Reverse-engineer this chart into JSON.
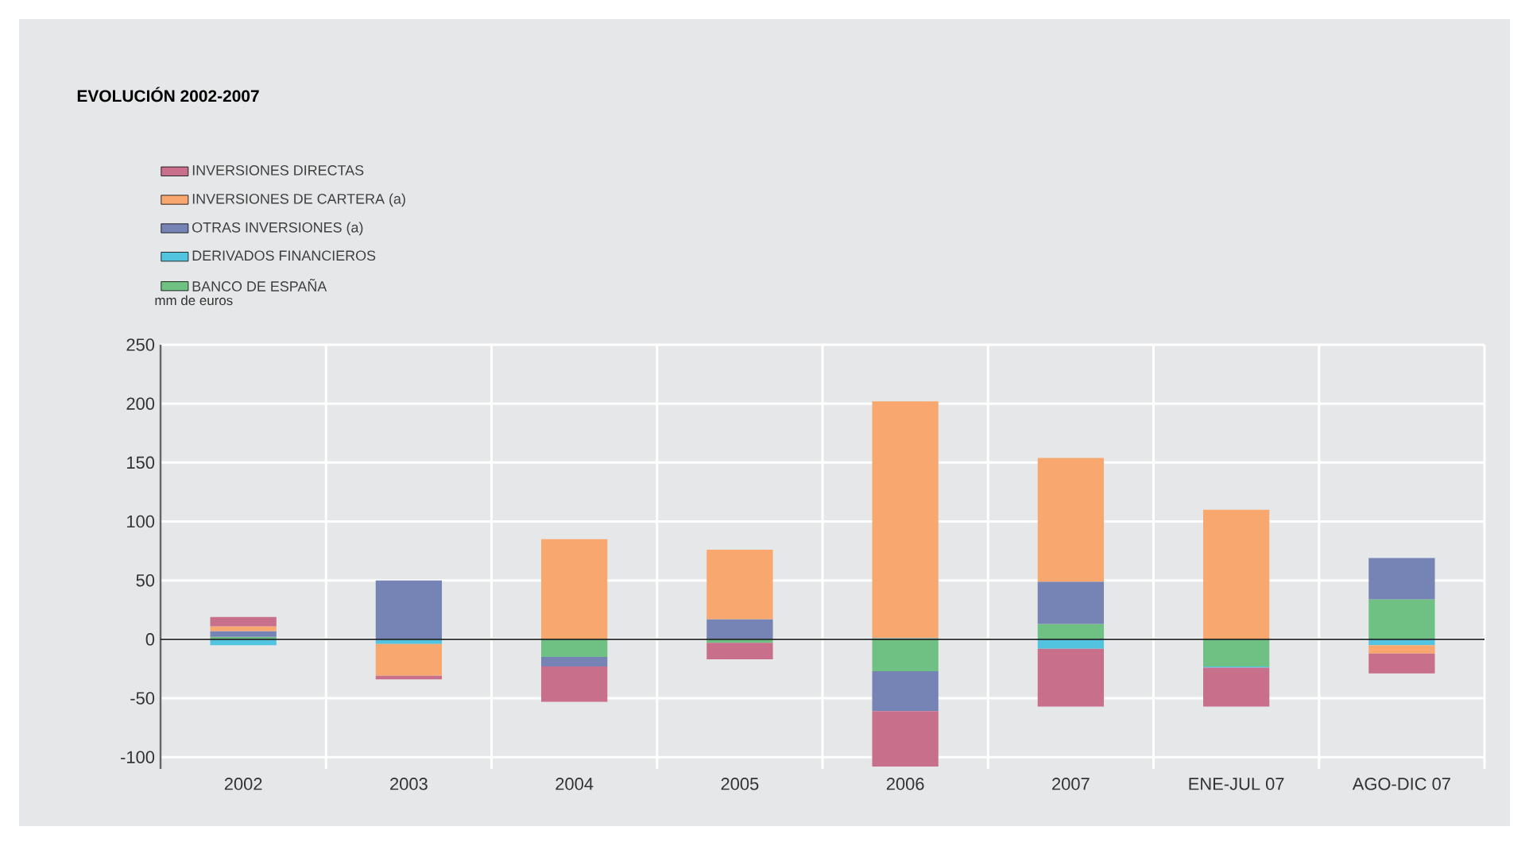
{
  "chart_data": {
    "type": "bar",
    "stacked": true,
    "title": "EVOLUCIÓN 2002-2007",
    "ylabel": "mm de euros",
    "categories": [
      "2002",
      "2003",
      "2004",
      "2005",
      "2006",
      "2007",
      "ENE-JUL 07",
      "AGO-DIC 07"
    ],
    "series": [
      {
        "name": "BANCO DE ESPAÑA",
        "color": "#6fc183",
        "values": [
          2,
          0,
          -15,
          -3,
          -27,
          13,
          -23,
          34
        ]
      },
      {
        "name": "DERIVADOS FINANCIEROS",
        "color": "#52c4df",
        "values": [
          -5,
          -4,
          0,
          0,
          1,
          -8,
          -1,
          -5
        ]
      },
      {
        "name": "OTRAS INVERSIONES (a)",
        "color": "#7584b4",
        "values": [
          5,
          50,
          -8,
          17,
          -34,
          36,
          0,
          35
        ]
      },
      {
        "name": "INVERSIONES DE CARTERA (a)",
        "color": "#f8a86f",
        "values": [
          4,
          -27,
          85,
          59,
          201,
          105,
          110,
          -7
        ]
      },
      {
        "name": "INVERSIONES DIRECTAS",
        "color": "#c86f8c",
        "values": [
          8,
          -3,
          -30,
          -14,
          -47,
          -49,
          -33,
          -17
        ]
      }
    ],
    "ylim": [
      -110,
      250
    ],
    "yticks": [
      -100,
      -50,
      0,
      50,
      100,
      150,
      200,
      250
    ],
    "grid": true,
    "legend": "top left"
  }
}
